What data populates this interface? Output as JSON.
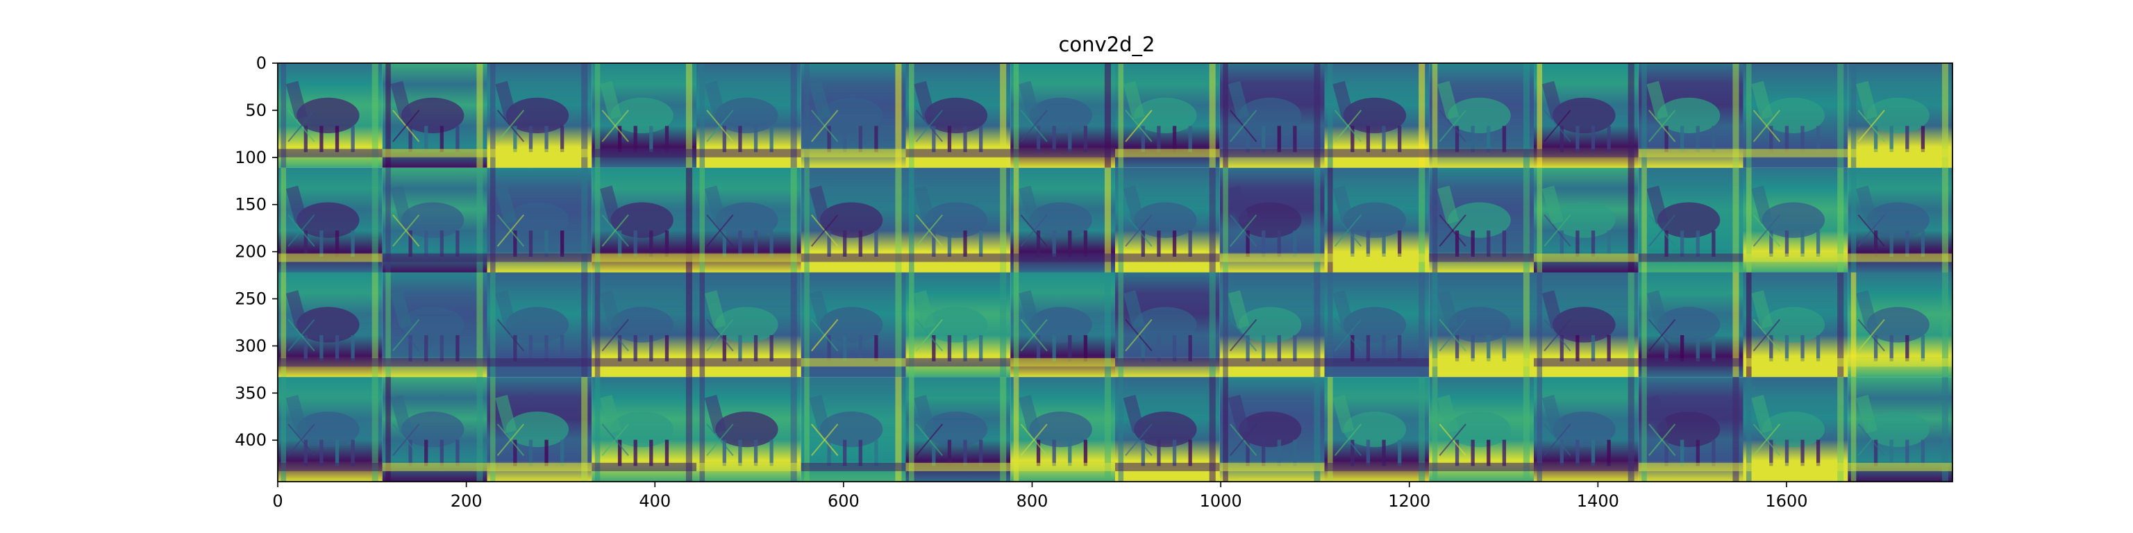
{
  "chart_data": {
    "type": "heatmap",
    "title": "conv2d_2",
    "xlabel": "",
    "ylabel": "",
    "colormap": "viridis",
    "colormap_stops": [
      "#440154",
      "#3b528b",
      "#21918c",
      "#5ec962",
      "#fde725"
    ],
    "grid": false,
    "xlim": [
      0,
      1776
    ],
    "ylim": [
      444,
      0
    ],
    "xticks": [
      0,
      200,
      400,
      600,
      800,
      1000,
      1200,
      1400,
      1600
    ],
    "yticks": [
      0,
      50,
      100,
      150,
      200,
      250,
      300,
      350,
      400
    ],
    "grid_layout": {
      "rows": 4,
      "cols": 16
    },
    "tile_size_px": 111,
    "feature_maps_count": 64,
    "content": "Grid of 64 feature-map activations of a horse standing in a stable doorway"
  }
}
